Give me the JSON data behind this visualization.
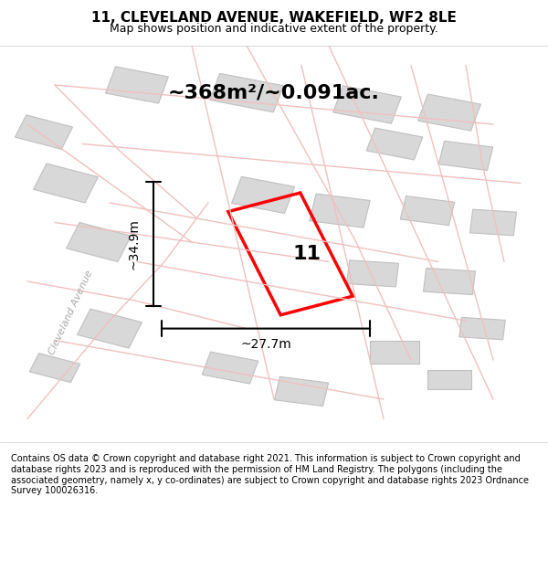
{
  "title": "11, CLEVELAND AVENUE, WAKEFIELD, WF2 8LE",
  "subtitle": "Map shows position and indicative extent of the property.",
  "area_text": "~368m²/~0.091ac.",
  "width_label": "~27.7m",
  "height_label": "~34.9m",
  "number_label": "11",
  "footer": "Contains OS data © Crown copyright and database right 2021. This information is subject to Crown copyright and database rights 2023 and is reproduced with the permission of HM Land Registry. The polygons (including the associated geometry, namely x, y co-ordinates) are subject to Crown copyright and database rights 2023 Ordnance Survey 100026316.",
  "map_bg": "#f7f7f7",
  "road_color": "#f0c0c0",
  "building_color": "#d8d8d8",
  "building_edge": "#c0c0c0",
  "highlight_color": "#ff0000",
  "street_label": "Cleveland Avenue",
  "figsize": [
    6.0,
    6.25
  ],
  "dpi": 100
}
